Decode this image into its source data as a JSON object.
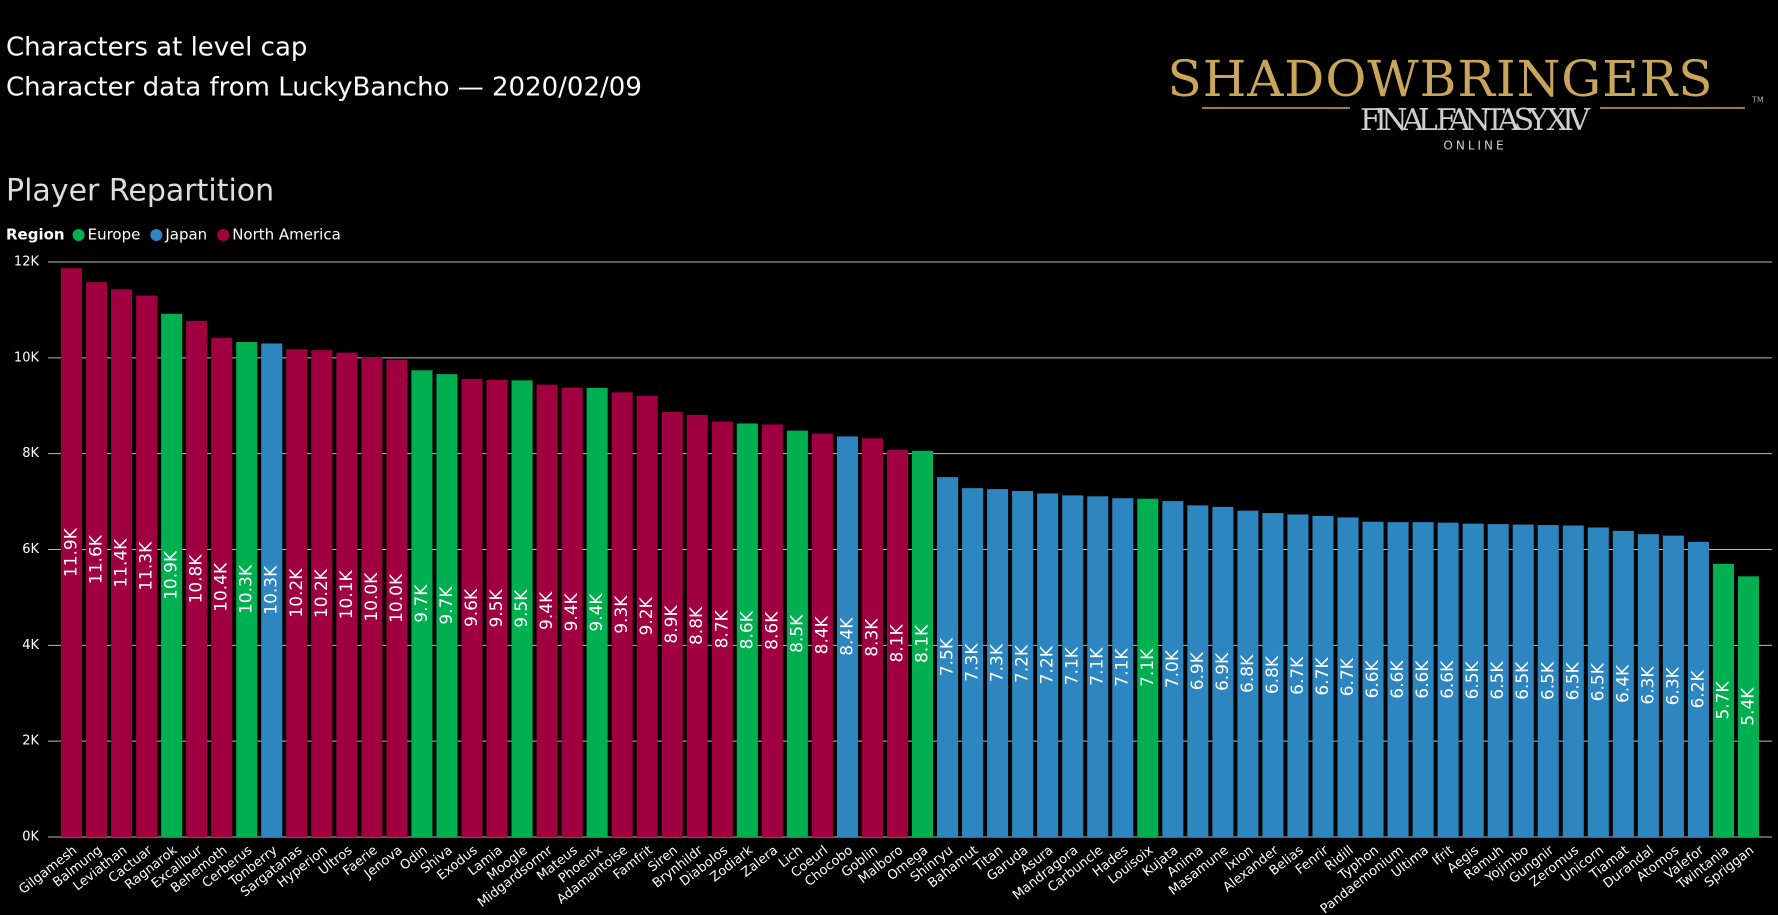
{
  "header": {
    "title": "Characters at level cap",
    "subtitle": "Character data from LuckyBancho — 2020/02/09"
  },
  "logo": {
    "title": "SHADOWBRINGERS",
    "subtitle": "FINAL FANTASY XIV",
    "tagline": "ONLINE",
    "mark": "TM"
  },
  "chart_data": {
    "type": "bar",
    "title": "Player Repartition",
    "legend": {
      "title": "Region",
      "position": "top-left",
      "items": [
        {
          "name": "Europe",
          "color": "#00b050"
        },
        {
          "name": "Japan",
          "color": "#2e86c1"
        },
        {
          "name": "North America",
          "color": "#a0003f"
        }
      ]
    },
    "categories": [
      "Gilgamesh",
      "Balmung",
      "Leviathan",
      "Cactuar",
      "Ragnarok",
      "Excalibur",
      "Behemoth",
      "Cerberus",
      "Tonberry",
      "Sargatanas",
      "Hyperion",
      "Ultros",
      "Faerie",
      "Jenova",
      "Odin",
      "Shiva",
      "Exodus",
      "Lamia",
      "Moogle",
      "Midgardsormr",
      "Mateus",
      "Phoenix",
      "Adamantoise",
      "Famfrit",
      "Siren",
      "Brynhildr",
      "Diabolos",
      "Zodiark",
      "Zalera",
      "Lich",
      "Coeurl",
      "Chocobo",
      "Goblin",
      "Malboro",
      "Omega",
      "Shinryu",
      "Bahamut",
      "Titan",
      "Garuda",
      "Asura",
      "Mandragora",
      "Carbuncle",
      "Hades",
      "Louisoix",
      "Kujata",
      "Anima",
      "Masamune",
      "Ixion",
      "Alexander",
      "Belias",
      "Fenrir",
      "Ridill",
      "Typhon",
      "Pandaemonium",
      "Ultima",
      "Ifrit",
      "Aegis",
      "Ramuh",
      "Yojimbo",
      "Gungnir",
      "Zeromus",
      "Unicorn",
      "Tiamat",
      "Durandal",
      "Atomos",
      "Valefor",
      "Twintania",
      "Spriggan"
    ],
    "regions": [
      "North America",
      "North America",
      "North America",
      "North America",
      "Europe",
      "North America",
      "North America",
      "Europe",
      "Japan",
      "North America",
      "North America",
      "North America",
      "North America",
      "North America",
      "Europe",
      "Europe",
      "North America",
      "North America",
      "Europe",
      "North America",
      "North America",
      "Europe",
      "North America",
      "North America",
      "North America",
      "North America",
      "North America",
      "Europe",
      "North America",
      "Europe",
      "North America",
      "Japan",
      "North America",
      "North America",
      "Europe",
      "Japan",
      "Japan",
      "Japan",
      "Japan",
      "Japan",
      "Japan",
      "Japan",
      "Japan",
      "Europe",
      "Japan",
      "Japan",
      "Japan",
      "Japan",
      "Japan",
      "Japan",
      "Japan",
      "Japan",
      "Japan",
      "Japan",
      "Japan",
      "Japan",
      "Japan",
      "Japan",
      "Japan",
      "Japan",
      "Japan",
      "Japan",
      "Japan",
      "Japan",
      "Japan",
      "Japan",
      "Europe",
      "Europe"
    ],
    "values": [
      11870,
      11580,
      11430,
      11300,
      10920,
      10770,
      10420,
      10330,
      10300,
      10180,
      10160,
      10110,
      10010,
      9960,
      9740,
      9660,
      9560,
      9540,
      9530,
      9440,
      9380,
      9370,
      9280,
      9210,
      8870,
      8810,
      8670,
      8630,
      8610,
      8480,
      8420,
      8360,
      8320,
      8080,
      8060,
      7510,
      7280,
      7260,
      7220,
      7170,
      7130,
      7110,
      7070,
      7060,
      7010,
      6920,
      6890,
      6810,
      6760,
      6730,
      6700,
      6670,
      6580,
      6570,
      6570,
      6560,
      6540,
      6530,
      6520,
      6510,
      6500,
      6460,
      6390,
      6320,
      6290,
      6160,
      5700,
      5440
    ],
    "value_labels": [
      "11.9K",
      "11.6K",
      "11.4K",
      "11.3K",
      "10.9K",
      "10.8K",
      "10.4K",
      "10.3K",
      "10.3K",
      "10.2K",
      "10.2K",
      "10.1K",
      "10.0K",
      "10.0K",
      "9.7K",
      "9.7K",
      "9.6K",
      "9.5K",
      "9.5K",
      "9.4K",
      "9.4K",
      "9.4K",
      "9.3K",
      "9.2K",
      "8.9K",
      "8.8K",
      "8.7K",
      "8.6K",
      "8.6K",
      "8.5K",
      "8.4K",
      "8.4K",
      "8.3K",
      "8.1K",
      "8.1K",
      "7.5K",
      "7.3K",
      "7.3K",
      "7.2K",
      "7.2K",
      "7.1K",
      "7.1K",
      "7.1K",
      "7.1K",
      "7.0K",
      "6.9K",
      "6.9K",
      "6.8K",
      "6.8K",
      "6.7K",
      "6.7K",
      "6.7K",
      "6.6K",
      "6.6K",
      "6.6K",
      "6.6K",
      "6.5K",
      "6.5K",
      "6.5K",
      "6.5K",
      "6.5K",
      "6.5K",
      "6.4K",
      "6.3K",
      "6.3K",
      "6.2K",
      "5.7K",
      "5.4K"
    ],
    "ylim": [
      0,
      12000
    ],
    "yticks": [
      {
        "value": 0,
        "label": "0K"
      },
      {
        "value": 2000,
        "label": "2K"
      },
      {
        "value": 4000,
        "label": "4K"
      },
      {
        "value": 6000,
        "label": "6K"
      },
      {
        "value": 8000,
        "label": "8K"
      },
      {
        "value": 10000,
        "label": "10K"
      },
      {
        "value": 12000,
        "label": "12K"
      }
    ],
    "grid": true
  }
}
